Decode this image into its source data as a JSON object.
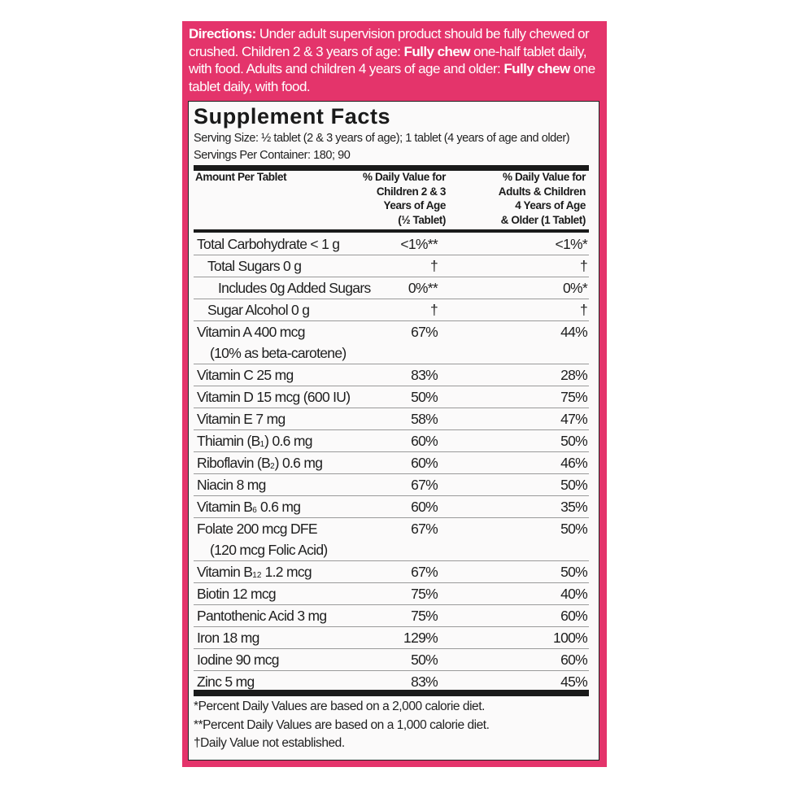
{
  "colors": {
    "panel": "#e4346b",
    "label_bg": "#fbfafa",
    "text": "#1e1e1e"
  },
  "directions": {
    "label": "Directions:",
    "text1": " Under adult supervision product should be fully chewed or crushed. Children 2 & 3 years of age: ",
    "bold1": "Fully chew",
    "text2": " one-half tablet daily, with food. Adults and children 4 years of age and older: ",
    "bold2": "Fully chew",
    "text3": " one tablet daily, with food."
  },
  "facts": {
    "title": "Supplement Facts",
    "serving_size": "Serving Size: ½ tablet (2 & 3 years of age); 1 tablet (4 years of age and older)",
    "servings_per_container": "Servings Per Container: 180; 90",
    "header_amount": "Amount Per Tablet",
    "header_col1": [
      "% Daily Value for",
      "Children 2 & 3",
      "Years of Age",
      "(½ Tablet)"
    ],
    "header_col2": [
      "% Daily Value for",
      "Adults & Children",
      "4 Years of Age",
      "& Older (1 Tablet)"
    ],
    "rows": [
      {
        "name": "Total Carbohydrate < 1 g",
        "indent": 0,
        "col1": "<1%**",
        "col2": "<1%*"
      },
      {
        "name": "Total Sugars 0 g",
        "indent": 1,
        "col1": "†",
        "col2": "†"
      },
      {
        "name": "Includes 0g Added Sugars",
        "indent": 2,
        "col1": "0%**",
        "col2": "0%*"
      },
      {
        "name": "Sugar Alcohol 0 g",
        "indent": 1,
        "col1": "†",
        "col2": "†"
      },
      {
        "name": "Vitamin A 400 mcg",
        "line2": "(10% as beta-carotene)",
        "indent": 0,
        "col1": "67%",
        "col2": "44%"
      },
      {
        "name": "Vitamin C 25 mg",
        "indent": 0,
        "col1": "83%",
        "col2": "28%"
      },
      {
        "name": "Vitamin D 15 mcg (600 IU)",
        "indent": 0,
        "col1": "50%",
        "col2": "75%"
      },
      {
        "name": "Vitamin E 7 mg",
        "indent": 0,
        "col1": "58%",
        "col2": "47%"
      },
      {
        "name": "Thiamin (B",
        "sub": "1",
        "rest": ") 0.6 mg",
        "indent": 0,
        "col1": "60%",
        "col2": "50%"
      },
      {
        "name": "Riboflavin (B",
        "sub": "2",
        "rest": ") 0.6 mg",
        "indent": 0,
        "col1": "60%",
        "col2": "46%"
      },
      {
        "name": "Niacin 8 mg",
        "indent": 0,
        "col1": "67%",
        "col2": "50%"
      },
      {
        "name": "Vitamin B",
        "sub": "6",
        "rest": " 0.6 mg",
        "indent": 0,
        "col1": "60%",
        "col2": "35%"
      },
      {
        "name": "Folate 200 mcg DFE",
        "line2": "(120 mcg Folic Acid)",
        "indent": 0,
        "col1": "67%",
        "col2": "50%"
      },
      {
        "name": "Vitamin B",
        "sub": "12",
        "rest": " 1.2 mcg",
        "indent": 0,
        "col1": "67%",
        "col2": "50%"
      },
      {
        "name": "Biotin 12 mcg",
        "indent": 0,
        "col1": "75%",
        "col2": "40%"
      },
      {
        "name": "Pantothenic Acid 3 mg",
        "indent": 0,
        "col1": "75%",
        "col2": "60%"
      },
      {
        "name": "Iron 18 mg",
        "indent": 0,
        "col1": "129%",
        "col2": "100%"
      },
      {
        "name": "Iodine 90 mcg",
        "indent": 0,
        "col1": "50%",
        "col2": "60%"
      },
      {
        "name": "Zinc 5 mg",
        "indent": 0,
        "col1": "83%",
        "col2": "45%"
      }
    ],
    "footnotes": [
      "*Percent Daily Values are based on a 2,000 calorie diet.",
      "**Percent Daily Values are based on a 1,000 calorie diet.",
      "†Daily Value not established."
    ]
  }
}
